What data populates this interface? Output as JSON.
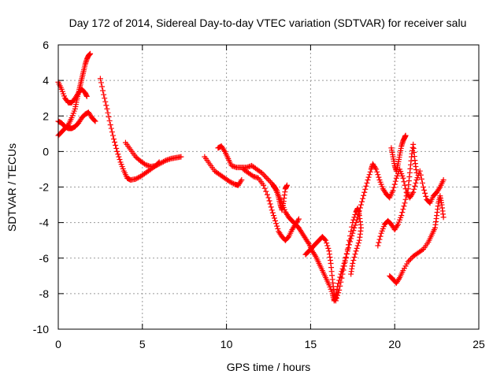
{
  "chart_data": {
    "type": "scatter",
    "title": "Day 172 of 2014, Sidereal Day-to-day VTEC variation (SDTVAR) for receiver salu",
    "xlabel": "GPS time / hours",
    "ylabel": "SDTVAR / TECUs",
    "xlim": [
      0,
      25
    ],
    "ylim": [
      -10,
      6
    ],
    "xticks": [
      "0",
      "5",
      "10",
      "15",
      "20",
      "25"
    ],
    "yticks": [
      "6",
      "4",
      "2",
      "0",
      "-2",
      "-4",
      "-6",
      "-8",
      "-10"
    ],
    "grid": true,
    "marker": "+",
    "color": "#ff0000",
    "series": [
      {
        "points": [
          [
            0.0,
            3.9
          ],
          [
            0.2,
            3.5
          ],
          [
            0.4,
            3.0
          ],
          [
            0.6,
            2.75
          ],
          [
            0.8,
            2.75
          ],
          [
            1.0,
            3.0
          ],
          [
            1.2,
            3.3
          ],
          [
            1.4,
            3.5
          ],
          [
            1.6,
            3.3
          ],
          [
            1.7,
            3.1
          ]
        ]
      },
      {
        "points": [
          [
            0.0,
            1.7
          ],
          [
            0.2,
            1.6
          ],
          [
            0.4,
            1.4
          ],
          [
            0.6,
            1.3
          ],
          [
            0.8,
            1.3
          ],
          [
            1.0,
            1.4
          ],
          [
            1.2,
            1.6
          ],
          [
            1.4,
            1.9
          ],
          [
            1.6,
            2.1
          ],
          [
            1.8,
            2.2
          ],
          [
            2.0,
            1.9
          ],
          [
            2.2,
            1.7
          ]
        ]
      },
      {
        "points": [
          [
            0.0,
            0.9
          ],
          [
            0.2,
            1.1
          ],
          [
            0.4,
            1.3
          ],
          [
            0.6,
            1.5
          ],
          [
            0.8,
            1.9
          ],
          [
            1.0,
            2.4
          ],
          [
            1.1,
            2.9
          ],
          [
            1.2,
            3.3
          ],
          [
            1.3,
            3.7
          ],
          [
            1.4,
            4.1
          ],
          [
            1.5,
            4.5
          ],
          [
            1.6,
            4.9
          ],
          [
            1.7,
            5.2
          ],
          [
            1.8,
            5.4
          ],
          [
            1.9,
            5.5
          ]
        ]
      },
      {
        "points": [
          [
            2.5,
            4.1
          ],
          [
            2.7,
            3.2
          ],
          [
            2.9,
            2.4
          ],
          [
            3.1,
            1.5
          ],
          [
            3.3,
            0.7
          ],
          [
            3.5,
            0.0
          ],
          [
            3.7,
            -0.6
          ],
          [
            3.9,
            -1.1
          ],
          [
            4.1,
            -1.5
          ],
          [
            4.3,
            -1.6
          ],
          [
            4.6,
            -1.55
          ],
          [
            4.9,
            -1.4
          ],
          [
            5.2,
            -1.2
          ],
          [
            5.5,
            -1.0
          ],
          [
            5.8,
            -0.8
          ],
          [
            6.1,
            -0.65
          ],
          [
            6.4,
            -0.5
          ],
          [
            6.7,
            -0.4
          ],
          [
            7.0,
            -0.35
          ],
          [
            7.3,
            -0.3
          ]
        ]
      },
      {
        "points": [
          [
            4.0,
            0.5
          ],
          [
            4.3,
            0.1
          ],
          [
            4.6,
            -0.3
          ],
          [
            4.9,
            -0.55
          ],
          [
            5.2,
            -0.75
          ],
          [
            5.5,
            -0.85
          ],
          [
            5.8,
            -0.8
          ],
          [
            6.0,
            -0.6
          ]
        ]
      },
      {
        "points": [
          [
            8.7,
            -0.3
          ],
          [
            9.0,
            -0.7
          ],
          [
            9.3,
            -1.1
          ],
          [
            9.6,
            -1.3
          ],
          [
            9.9,
            -1.5
          ],
          [
            10.2,
            -1.7
          ],
          [
            10.5,
            -1.85
          ],
          [
            10.7,
            -1.9
          ],
          [
            10.9,
            -1.6
          ]
        ]
      },
      {
        "points": [
          [
            9.5,
            0.2
          ],
          [
            9.7,
            0.3
          ],
          [
            9.9,
            0.0
          ],
          [
            10.1,
            -0.4
          ],
          [
            10.3,
            -0.8
          ],
          [
            10.6,
            -0.9
          ],
          [
            10.9,
            -0.9
          ],
          [
            11.2,
            -0.9
          ],
          [
            11.5,
            -0.8
          ],
          [
            11.8,
            -1.0
          ],
          [
            12.1,
            -1.2
          ],
          [
            12.4,
            -1.5
          ],
          [
            12.7,
            -1.8
          ],
          [
            12.9,
            -2.1
          ],
          [
            13.1,
            -2.5
          ],
          [
            13.3,
            -2.9
          ],
          [
            13.5,
            -3.4
          ],
          [
            13.7,
            -3.7
          ],
          [
            13.9,
            -3.9
          ],
          [
            14.1,
            -4.1
          ],
          [
            14.3,
            -4.3
          ],
          [
            14.5,
            -4.6
          ],
          [
            14.7,
            -4.9
          ],
          [
            14.9,
            -5.2
          ],
          [
            15.1,
            -5.6
          ],
          [
            15.3,
            -5.9
          ],
          [
            15.5,
            -6.3
          ],
          [
            15.7,
            -6.7
          ],
          [
            15.9,
            -7.1
          ],
          [
            16.1,
            -7.5
          ],
          [
            16.3,
            -8.0
          ],
          [
            16.4,
            -8.4
          ],
          [
            16.5,
            -8.2
          ],
          [
            16.6,
            -7.6
          ],
          [
            16.8,
            -6.9
          ],
          [
            17.0,
            -6.3
          ],
          [
            17.2,
            -5.6
          ],
          [
            17.4,
            -4.9
          ],
          [
            17.6,
            -4.3
          ],
          [
            17.8,
            -3.7
          ],
          [
            18.0,
            -3.0
          ],
          [
            18.2,
            -2.3
          ],
          [
            18.4,
            -1.6
          ],
          [
            18.6,
            -1.0
          ],
          [
            18.7,
            -0.7
          ],
          [
            18.9,
            -1.0
          ],
          [
            19.1,
            -1.6
          ],
          [
            19.3,
            -2.1
          ],
          [
            19.5,
            -2.4
          ],
          [
            19.7,
            -2.6
          ],
          [
            19.9,
            -2.2
          ],
          [
            20.1,
            -1.5
          ],
          [
            20.3,
            -1.0
          ],
          [
            20.5,
            -1.5
          ],
          [
            20.7,
            -2.3
          ],
          [
            20.9,
            -2.6
          ],
          [
            21.1,
            -2.3
          ],
          [
            21.3,
            -1.6
          ],
          [
            21.5,
            -1.1
          ],
          [
            21.7,
            -2.0
          ],
          [
            21.9,
            -2.7
          ],
          [
            22.1,
            -2.9
          ],
          [
            22.3,
            -2.5
          ],
          [
            22.5,
            -2.3
          ],
          [
            22.7,
            -2.0
          ],
          [
            22.9,
            -1.6
          ]
        ]
      },
      {
        "points": [
          [
            11.0,
            -1.0
          ],
          [
            11.3,
            -1.2
          ],
          [
            11.6,
            -1.4
          ],
          [
            11.9,
            -1.5
          ],
          [
            12.2,
            -1.9
          ],
          [
            12.5,
            -2.6
          ],
          [
            12.7,
            -3.3
          ],
          [
            12.9,
            -3.9
          ],
          [
            13.1,
            -4.5
          ],
          [
            13.3,
            -4.8
          ],
          [
            13.5,
            -5.0
          ],
          [
            13.7,
            -4.8
          ],
          [
            13.9,
            -4.4
          ],
          [
            14.1,
            -4.1
          ],
          [
            14.3,
            -3.8
          ]
        ]
      },
      {
        "points": [
          [
            12.8,
            -1.9
          ],
          [
            13.0,
            -2.2
          ],
          [
            13.1,
            -2.6
          ],
          [
            13.2,
            -3.0
          ],
          [
            13.3,
            -3.3
          ],
          [
            13.4,
            -2.8
          ],
          [
            13.5,
            -2.1
          ],
          [
            13.6,
            -1.9
          ]
        ]
      },
      {
        "points": [
          [
            14.7,
            -5.8
          ],
          [
            14.9,
            -5.6
          ],
          [
            15.1,
            -5.4
          ],
          [
            15.3,
            -5.2
          ],
          [
            15.5,
            -5.0
          ],
          [
            15.7,
            -4.8
          ],
          [
            15.9,
            -5.0
          ],
          [
            16.1,
            -5.6
          ],
          [
            16.2,
            -6.3
          ],
          [
            16.3,
            -7.2
          ],
          [
            16.4,
            -8.0
          ],
          [
            16.5,
            -8.4
          ],
          [
            16.7,
            -7.8
          ],
          [
            16.9,
            -6.9
          ],
          [
            17.1,
            -6.0
          ],
          [
            17.3,
            -5.0
          ],
          [
            17.5,
            -4.0
          ],
          [
            17.7,
            -3.4
          ],
          [
            17.8,
            -3.2
          ],
          [
            17.9,
            -3.6
          ],
          [
            18.0,
            -4.3
          ],
          [
            17.9,
            -5.0
          ],
          [
            17.7,
            -5.6
          ],
          [
            17.5,
            -6.3
          ],
          [
            17.4,
            -6.9
          ]
        ]
      },
      {
        "points": [
          [
            19.0,
            -5.3
          ],
          [
            19.2,
            -4.6
          ],
          [
            19.4,
            -4.1
          ],
          [
            19.6,
            -3.9
          ],
          [
            19.8,
            -4.1
          ],
          [
            20.0,
            -4.4
          ],
          [
            20.2,
            -4.1
          ],
          [
            20.4,
            -3.6
          ],
          [
            20.6,
            -2.9
          ],
          [
            20.8,
            -2.1
          ],
          [
            20.9,
            -1.2
          ],
          [
            21.0,
            -0.3
          ],
          [
            21.1,
            0.4
          ],
          [
            21.2,
            -0.5
          ],
          [
            21.3,
            -1.2
          ]
        ]
      },
      {
        "points": [
          [
            19.8,
            0.2
          ],
          [
            19.9,
            -0.3
          ],
          [
            20.0,
            -0.8
          ],
          [
            20.1,
            -1.1
          ],
          [
            20.2,
            -0.7
          ],
          [
            20.3,
            -0.2
          ],
          [
            20.4,
            0.3
          ],
          [
            20.5,
            0.6
          ],
          [
            20.6,
            0.8
          ],
          [
            20.65,
            0.9
          ]
        ]
      },
      {
        "points": [
          [
            19.7,
            -7.0
          ],
          [
            19.9,
            -7.2
          ],
          [
            20.1,
            -7.4
          ],
          [
            20.3,
            -7.1
          ],
          [
            20.5,
            -6.7
          ],
          [
            20.8,
            -6.2
          ],
          [
            21.1,
            -5.9
          ],
          [
            21.4,
            -5.7
          ],
          [
            21.7,
            -5.5
          ],
          [
            22.0,
            -5.1
          ],
          [
            22.2,
            -4.7
          ],
          [
            22.4,
            -4.3
          ],
          [
            22.5,
            -3.6
          ],
          [
            22.6,
            -2.9
          ],
          [
            22.7,
            -2.5
          ],
          [
            22.8,
            -3.0
          ],
          [
            22.9,
            -3.7
          ]
        ]
      }
    ]
  }
}
